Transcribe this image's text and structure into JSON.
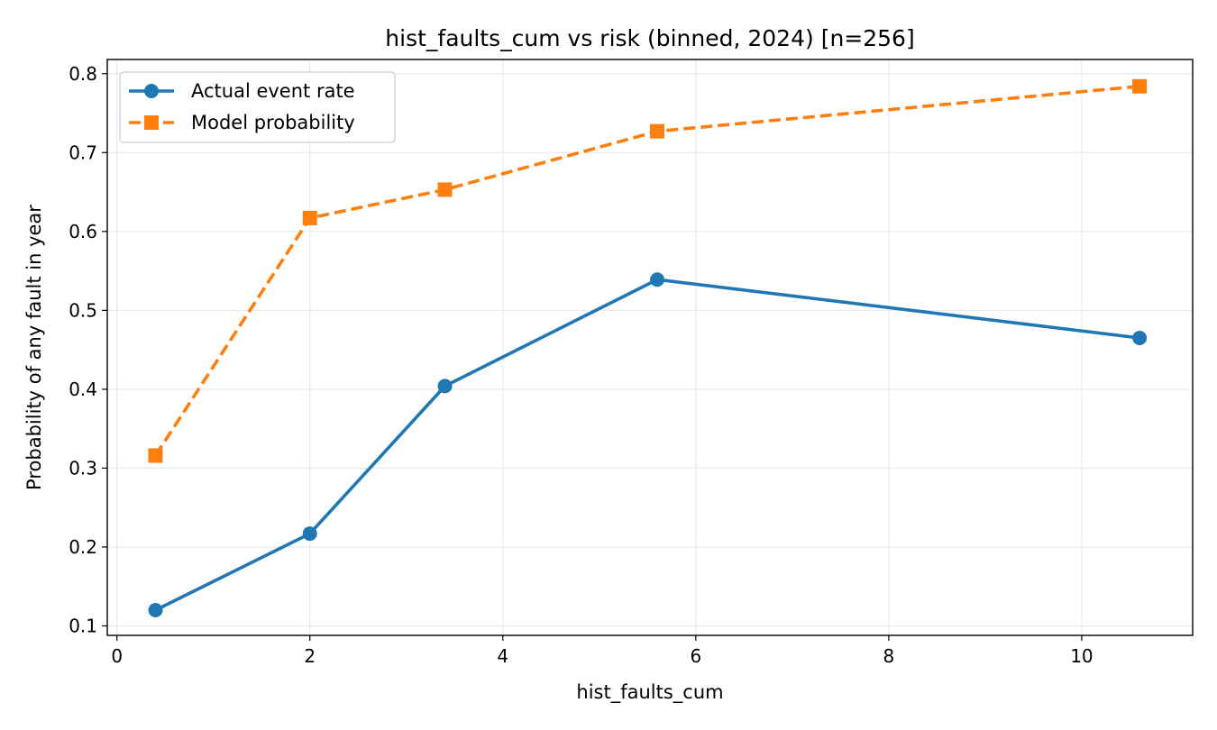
{
  "chart_data": {
    "type": "line",
    "title": "hist_faults_cum vs risk (binned, 2024)  [n=256]",
    "xlabel": "hist_faults_cum",
    "ylabel": "Probability of any fault in year",
    "xlim": [
      -0.1,
      11.15
    ],
    "ylim": [
      0.088,
      0.818
    ],
    "xticks": [
      0,
      2,
      4,
      6,
      8,
      10
    ],
    "yticks": [
      0.1,
      0.2,
      0.3,
      0.4,
      0.5,
      0.6,
      0.7,
      0.8
    ],
    "grid": true,
    "legend_position": "upper-left",
    "series": [
      {
        "name": "Actual event rate",
        "color": "#1f77b4",
        "line_style": "solid",
        "marker": "circle",
        "x": [
          0.4,
          2.0,
          3.4,
          5.6,
          10.6
        ],
        "y": [
          0.12,
          0.217,
          0.404,
          0.539,
          0.465
        ]
      },
      {
        "name": "Model probability",
        "color": "#ff7f0e",
        "line_style": "dashed",
        "marker": "square",
        "x": [
          0.4,
          2.0,
          3.4,
          5.6,
          10.6
        ],
        "y": [
          0.316,
          0.617,
          0.653,
          0.727,
          0.784
        ]
      }
    ]
  }
}
